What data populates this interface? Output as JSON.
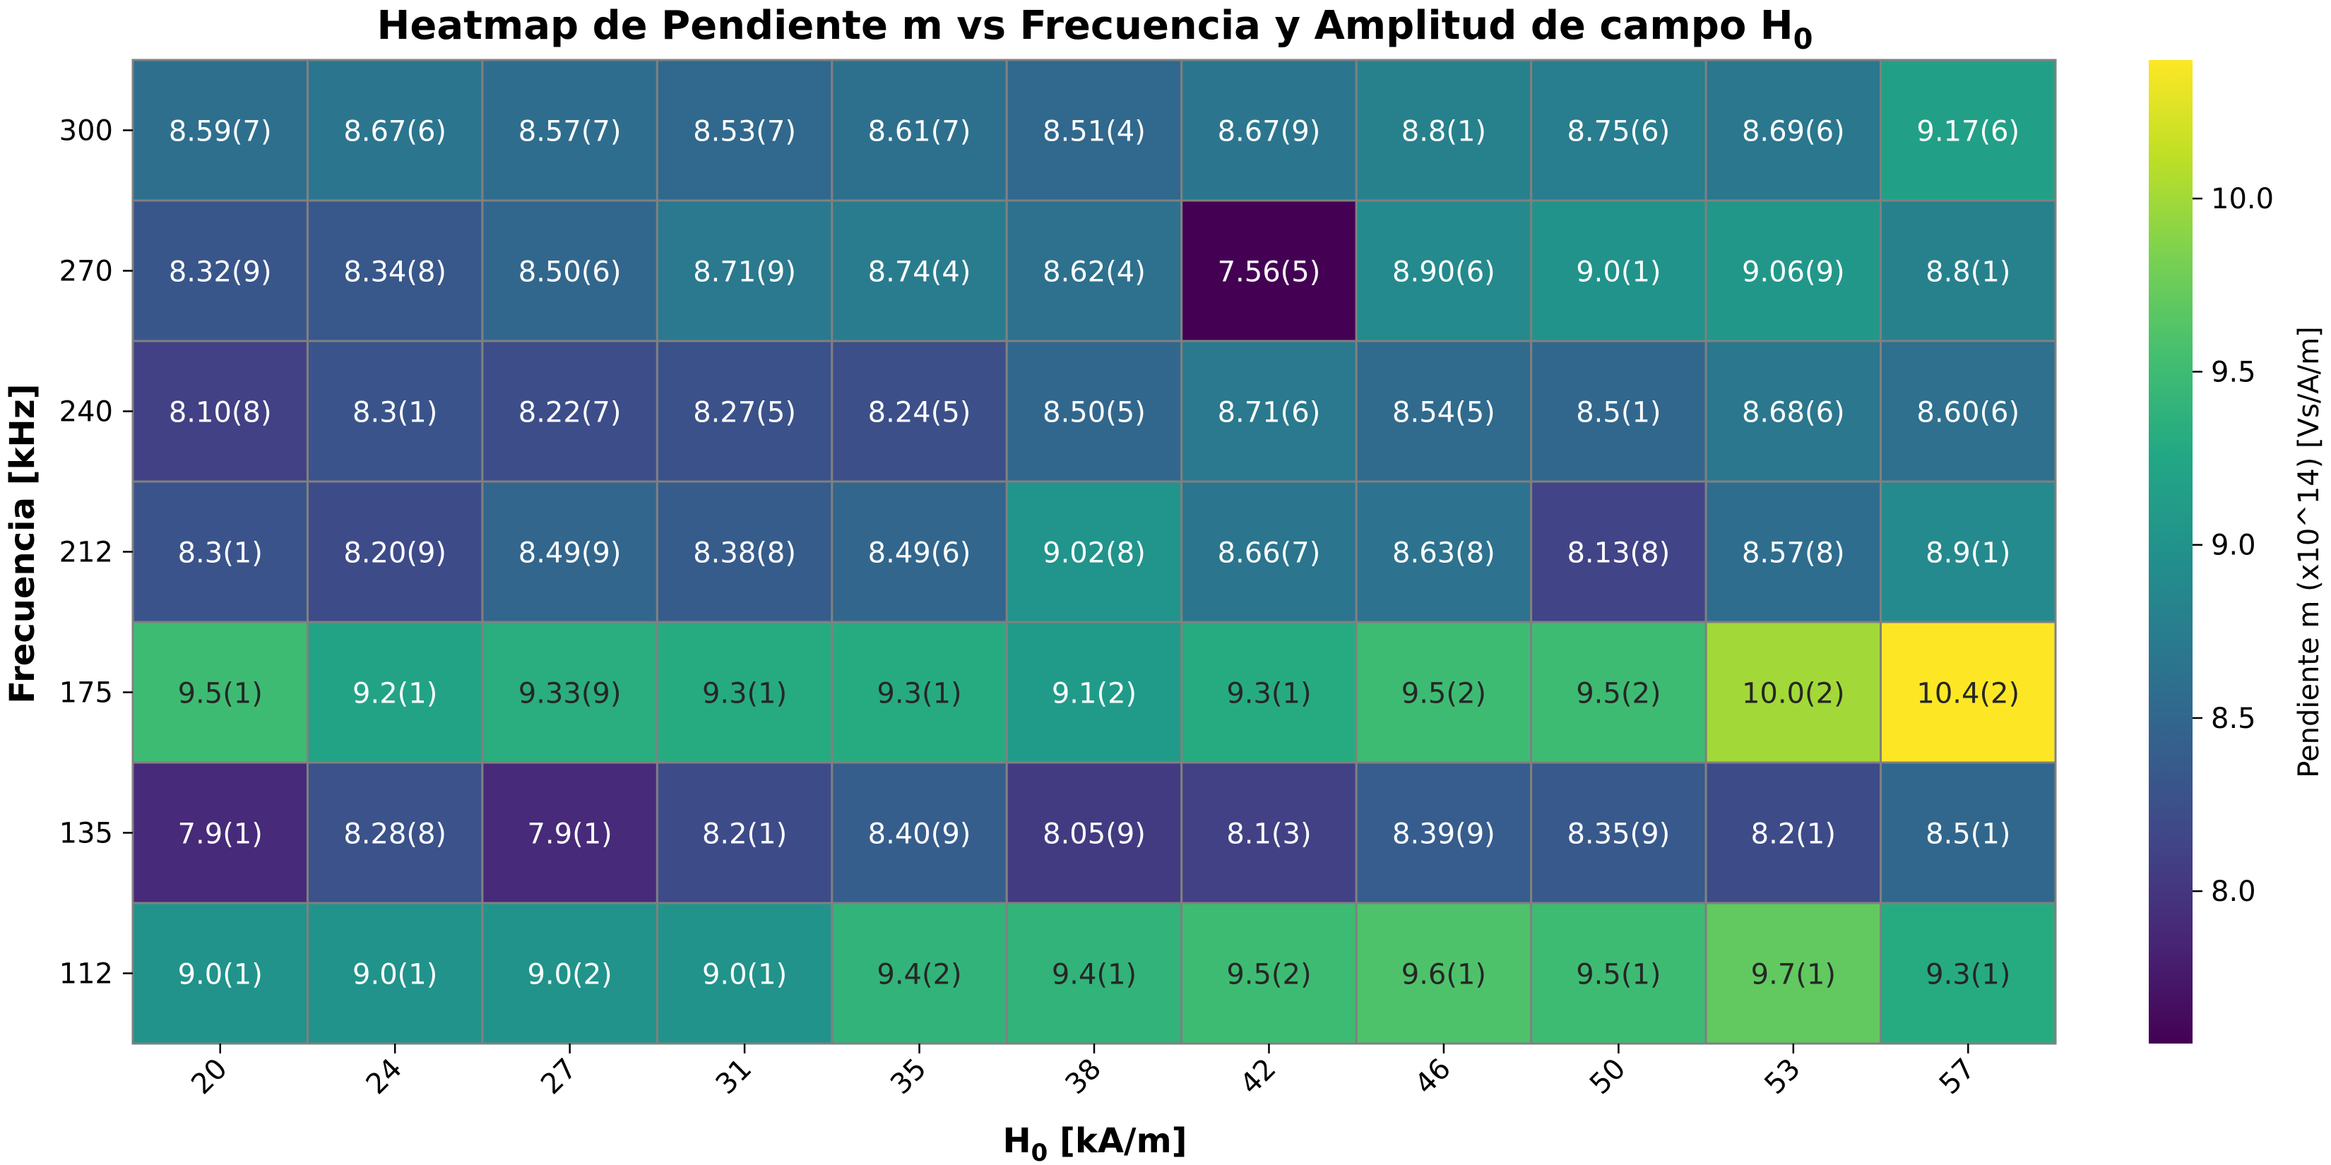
{
  "chart_data": {
    "type": "heatmap",
    "title": "Heatmap de Pendiente m vs Frecuencia y Amplitud de campo H",
    "title_subscript": "0",
    "xlabel": "H",
    "xlabel_subscript": "0",
    "xlabel_suffix": " [kA/m]",
    "ylabel": "Frecuencia [kHz]",
    "colorbar_label": "Pendiente m (x10^14) [Vs/A/m]",
    "colormap": "viridis",
    "vmin": 7.56,
    "vmax": 10.4,
    "x_ticks": [
      "20",
      "24",
      "27",
      "31",
      "35",
      "38",
      "42",
      "46",
      "50",
      "53",
      "57"
    ],
    "y_ticks": [
      "300",
      "270",
      "240",
      "212",
      "175",
      "135",
      "112"
    ],
    "colorbar_ticks": [
      {
        "value": 8.0,
        "label": "8.0"
      },
      {
        "value": 8.5,
        "label": "8.5"
      },
      {
        "value": 9.0,
        "label": "9.0"
      },
      {
        "value": 9.5,
        "label": "9.5"
      },
      {
        "value": 10.0,
        "label": "10.0"
      }
    ],
    "values": [
      [
        8.59,
        8.67,
        8.57,
        8.53,
        8.61,
        8.51,
        8.67,
        8.8,
        8.75,
        8.69,
        9.17
      ],
      [
        8.32,
        8.34,
        8.5,
        8.71,
        8.74,
        8.62,
        7.56,
        8.9,
        9.0,
        9.06,
        8.8
      ],
      [
        8.1,
        8.3,
        8.22,
        8.27,
        8.24,
        8.5,
        8.71,
        8.54,
        8.5,
        8.68,
        8.6
      ],
      [
        8.3,
        8.2,
        8.49,
        8.38,
        8.49,
        9.02,
        8.66,
        8.63,
        8.13,
        8.57,
        8.9
      ],
      [
        9.5,
        9.2,
        9.33,
        9.3,
        9.3,
        9.1,
        9.3,
        9.5,
        9.5,
        10.0,
        10.4
      ],
      [
        7.9,
        8.28,
        7.9,
        8.2,
        8.4,
        8.05,
        8.1,
        8.39,
        8.35,
        8.2,
        8.5
      ],
      [
        9.0,
        9.0,
        9.0,
        9.0,
        9.4,
        9.4,
        9.5,
        9.6,
        9.5,
        9.7,
        9.3
      ]
    ],
    "labels": [
      [
        "8.59(7)",
        "8.67(6)",
        "8.57(7)",
        "8.53(7)",
        "8.61(7)",
        "8.51(4)",
        "8.67(9)",
        "8.8(1)",
        "8.75(6)",
        "8.69(6)",
        "9.17(6)"
      ],
      [
        "8.32(9)",
        "8.34(8)",
        "8.50(6)",
        "8.71(9)",
        "8.74(4)",
        "8.62(4)",
        "7.56(5)",
        "8.90(6)",
        "9.0(1)",
        "9.06(9)",
        "8.8(1)"
      ],
      [
        "8.10(8)",
        "8.3(1)",
        "8.22(7)",
        "8.27(5)",
        "8.24(5)",
        "8.50(5)",
        "8.71(6)",
        "8.54(5)",
        "8.5(1)",
        "8.68(6)",
        "8.60(6)"
      ],
      [
        "8.3(1)",
        "8.20(9)",
        "8.49(9)",
        "8.38(8)",
        "8.49(6)",
        "9.02(8)",
        "8.66(7)",
        "8.63(8)",
        "8.13(8)",
        "8.57(8)",
        "8.9(1)"
      ],
      [
        "9.5(1)",
        "9.2(1)",
        "9.33(9)",
        "9.3(1)",
        "9.3(1)",
        "9.1(2)",
        "9.3(1)",
        "9.5(2)",
        "9.5(2)",
        "10.0(2)",
        "10.4(2)"
      ],
      [
        "7.9(1)",
        "8.28(8)",
        "7.9(1)",
        "8.2(1)",
        "8.40(9)",
        "8.05(9)",
        "8.1(3)",
        "8.39(9)",
        "8.35(9)",
        "8.2(1)",
        "8.5(1)"
      ],
      [
        "9.0(1)",
        "9.0(1)",
        "9.0(2)",
        "9.0(1)",
        "9.4(2)",
        "9.4(1)",
        "9.5(2)",
        "9.6(1)",
        "9.5(1)",
        "9.7(1)",
        "9.3(1)"
      ]
    ]
  }
}
